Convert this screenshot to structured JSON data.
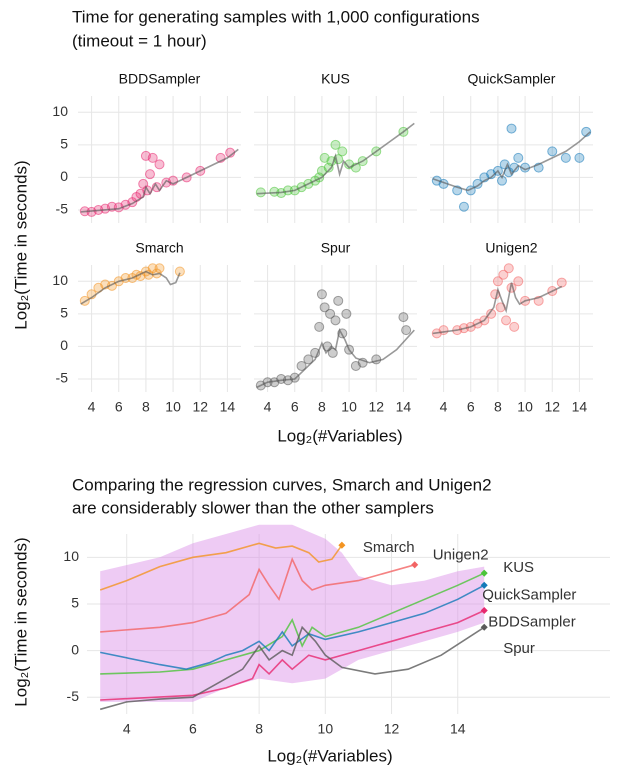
{
  "chart_data": [
    {
      "type": "scatter",
      "title": [
        "Time for generating samples with 1,000 configurations",
        "(timeout = 1 hour)"
      ],
      "xlabel": "Log₂(#Variables)",
      "ylabel": "Log₂(Time in seconds)",
      "xlim": [
        3,
        15
      ],
      "ylim": [
        -7,
        12.5
      ],
      "xticks": [
        4,
        6,
        8,
        10,
        12,
        14
      ],
      "yticks": [
        10,
        5,
        0,
        -5
      ],
      "grid": true,
      "panels": [
        {
          "name": "BDDSampler",
          "color": "#e7286f",
          "x": [
            3.5,
            4,
            4.5,
            5,
            5.5,
            6,
            6.5,
            7,
            7.3,
            7.6,
            7.8,
            8,
            8.1,
            8.3,
            8.5,
            8.8,
            9,
            9.5,
            10,
            11,
            12,
            13.5,
            14.2
          ],
          "y": [
            -5.2,
            -5.3,
            -5,
            -4.8,
            -4.5,
            -4.6,
            -4.2,
            -3.8,
            -3,
            -2.5,
            -1,
            3.3,
            -2,
            0.5,
            3,
            -1.5,
            2,
            -0.8,
            -0.5,
            0,
            1,
            3,
            3.8
          ]
        },
        {
          "name": "KUS",
          "color": "#4cc43a",
          "x": [
            3.5,
            4.5,
            5,
            5.5,
            6,
            6.5,
            7,
            7.5,
            7.8,
            8,
            8.2,
            8.5,
            8.7,
            9,
            9.2,
            9.5,
            10,
            10.5,
            11,
            12,
            14
          ],
          "y": [
            -2.3,
            -2.2,
            -2.4,
            -2,
            -2,
            -1.5,
            -1,
            -0.5,
            0,
            1,
            3,
            1.5,
            2.5,
            5,
            2.8,
            4,
            2,
            1.5,
            2.5,
            4,
            7
          ]
        },
        {
          "name": "QuickSampler",
          "color": "#1479b8",
          "x": [
            3.5,
            4,
            5,
            5.5,
            6,
            6.5,
            7,
            7.5,
            8,
            8.3,
            8.5,
            8.8,
            9,
            9.2,
            9.5,
            10,
            11,
            12,
            13,
            14,
            14.5
          ],
          "y": [
            -0.5,
            -1,
            -2,
            -4.5,
            -2,
            -1,
            0,
            0.5,
            1,
            -0.5,
            2,
            0.8,
            7.5,
            1.5,
            3,
            1.5,
            1.5,
            4,
            3,
            3,
            7
          ]
        },
        {
          "name": "Smarch",
          "color": "#f39422",
          "x": [
            3.5,
            4,
            4.5,
            5,
            5.5,
            6,
            6.5,
            7,
            7.3,
            7.6,
            8,
            8.2,
            8.5,
            8.8,
            9,
            10.5
          ],
          "y": [
            7,
            8,
            9,
            9.5,
            9.3,
            10,
            10.5,
            10.5,
            11,
            10.8,
            11.5,
            11,
            12,
            11.2,
            12,
            11.5
          ]
        },
        {
          "name": "Spur",
          "color": "#5a5a5a",
          "x": [
            3.5,
            4,
            4.5,
            5,
            5.5,
            6,
            6.5,
            7,
            7.5,
            7.8,
            8,
            8.2,
            8.4,
            8.6,
            8.8,
            9,
            9.2,
            9.5,
            9.8,
            10,
            10.5,
            11,
            12,
            14,
            14.2
          ],
          "y": [
            -6,
            -5.5,
            -5.5,
            -5,
            -5.2,
            -4.8,
            -3,
            -2,
            -1,
            3,
            8,
            6,
            0,
            5,
            -1,
            4,
            7,
            2,
            5,
            -0.5,
            -3,
            -2.5,
            -2,
            4.5,
            2.5
          ]
        },
        {
          "name": "Unigen2",
          "color": "#f26464",
          "x": [
            3.5,
            4,
            5,
            5.5,
            6,
            6.5,
            7,
            7.5,
            7.8,
            8,
            8.2,
            8.4,
            8.6,
            8.8,
            9,
            9.2,
            9.5,
            10,
            11,
            12,
            12.7
          ],
          "y": [
            2,
            2.5,
            2.5,
            2.8,
            3,
            3.5,
            4,
            5,
            8,
            10,
            6,
            11,
            4,
            12,
            9,
            3,
            10,
            7,
            7,
            8.5,
            9.8
          ]
        }
      ]
    },
    {
      "type": "line",
      "title": [
        "Comparing the regression curves, Smarch and Unigen2",
        "are considerably slower than the other samplers"
      ],
      "xlabel": "Log₂(#Variables)",
      "ylabel": "Log₂(Time in seconds)",
      "xlim": [
        2.8,
        18.6
      ],
      "ylim": [
        -6.8,
        12.5
      ],
      "xticks": [
        4,
        6,
        8,
        10,
        12,
        14
      ],
      "yticks": [
        10,
        5,
        0,
        -5
      ],
      "grid": true,
      "ribbon": {
        "color": "#d98be6",
        "x": [
          3.2,
          5,
          6,
          7,
          8,
          9,
          10,
          10.5,
          11,
          12,
          13,
          14,
          14.8
        ],
        "upper": [
          8.5,
          10,
          11.5,
          12.5,
          13.5,
          13.5,
          12,
          10.5,
          8,
          7,
          7.5,
          8.5,
          9
        ],
        "lower": [
          -5.5,
          -5.5,
          -5.5,
          -4,
          -3,
          -3.5,
          -3,
          -2,
          -1,
          0,
          1,
          2,
          3
        ]
      },
      "series": [
        {
          "name": "BDDSampler",
          "color": "#e7286f",
          "x": [
            3.2,
            6,
            7,
            7.8,
            8,
            8.3,
            8.7,
            9,
            9.5,
            10,
            11,
            12,
            13,
            14,
            14.8
          ],
          "values": [
            -5.3,
            -4.8,
            -4,
            -3,
            -1.5,
            -2.5,
            -1,
            -2,
            -0.5,
            -1,
            0,
            1,
            2,
            3,
            4.3
          ]
        },
        {
          "name": "KUS",
          "color": "#4cc43a",
          "x": [
            3.2,
            5,
            6,
            7,
            8,
            8.7,
            9,
            9.3,
            9.6,
            10,
            11,
            12,
            13,
            14,
            14.8
          ],
          "values": [
            -2.5,
            -2.3,
            -2,
            -1,
            0,
            1.5,
            3.3,
            0.5,
            2.5,
            1.5,
            2.5,
            4,
            5.5,
            7,
            8.3
          ]
        },
        {
          "name": "QuickSampler",
          "color": "#1479b8",
          "x": [
            3.2,
            5,
            5.8,
            6.5,
            7,
            7.5,
            8,
            8.3,
            8.7,
            9,
            9.5,
            10,
            11,
            12,
            13,
            14,
            14.8
          ],
          "values": [
            -0.2,
            -1.5,
            -2,
            -1.3,
            -0.5,
            0,
            1,
            0,
            2,
            0.5,
            1.8,
            1.2,
            2,
            3,
            4,
            5.5,
            7
          ]
        },
        {
          "name": "Smarch",
          "color": "#f39422",
          "x": [
            3.2,
            4,
            5,
            6,
            7,
            8,
            8.5,
            9,
            9.5,
            9.8,
            10.2,
            10.5
          ],
          "values": [
            6.5,
            7.5,
            9,
            10,
            10.5,
            11.5,
            11,
            11.2,
            10.5,
            9.5,
            9.8,
            11.3
          ]
        },
        {
          "name": "Spur",
          "color": "#5a5a5a",
          "x": [
            3.2,
            4,
            5,
            6,
            7,
            7.5,
            8,
            8.3,
            8.7,
            9,
            9.3,
            9.7,
            10,
            10.5,
            11.5,
            12.5,
            13.5,
            14.8
          ],
          "values": [
            -6.3,
            -5.5,
            -5.2,
            -5,
            -3,
            -2,
            0.5,
            -1,
            0,
            -0.5,
            2.5,
            1,
            -0.5,
            -1.8,
            -2.5,
            -2,
            -0.5,
            2.5
          ]
        },
        {
          "name": "Unigen2",
          "color": "#f26464",
          "x": [
            3.2,
            5,
            6,
            7,
            7.7,
            8,
            8.3,
            8.6,
            9,
            9.3,
            9.6,
            10,
            11,
            12,
            12.7
          ],
          "values": [
            2,
            2.5,
            3,
            4,
            6,
            8.7,
            7,
            5.5,
            9.8,
            7.5,
            6.5,
            7,
            7.5,
            8.5,
            9.2
          ]
        }
      ]
    }
  ]
}
